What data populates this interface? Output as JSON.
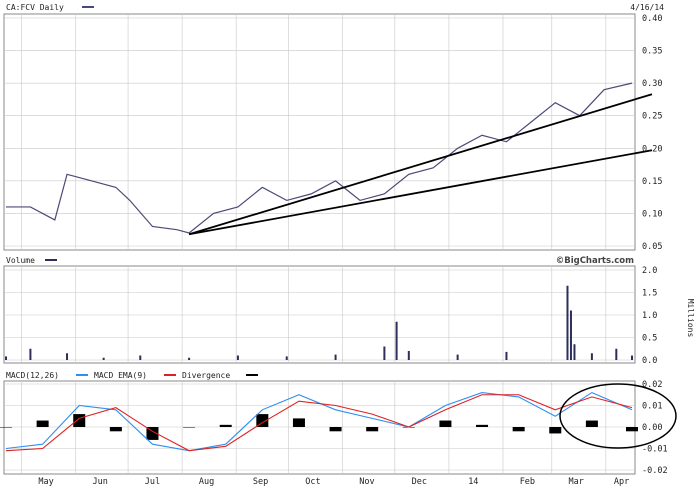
{
  "header": {
    "symbol_label": "CA:FCV Daily",
    "date": "4/16/14"
  },
  "colors": {
    "price": "#4a4a78",
    "volume": "#2e2e5a",
    "macd": "#2f8ff0",
    "ema": "#e02020",
    "divergence": "#000000",
    "trendline": "#000000",
    "grid": "#c8c8c8"
  },
  "chart_data": [
    {
      "type": "line",
      "title": "CA:FCV Daily",
      "ylabel": "",
      "ylim": [
        0.05,
        0.4
      ],
      "yticks": [
        "0.05",
        "0.10",
        "0.15",
        "0.20",
        "0.25",
        "0.30",
        "0.35",
        "0.40"
      ],
      "ytick_values": [
        0.05,
        0.1,
        0.15,
        0.2,
        0.25,
        0.3,
        0.35,
        0.4
      ],
      "x": [
        "2013-04-22",
        "2013-05-06",
        "2013-05-20",
        "2013-05-27",
        "2013-06-10",
        "2013-06-24",
        "2013-07-02",
        "2013-07-15",
        "2013-07-29",
        "2013-08-05",
        "2013-08-19",
        "2013-09-02",
        "2013-09-16",
        "2013-09-30",
        "2013-10-14",
        "2013-10-28",
        "2013-11-11",
        "2013-11-25",
        "2013-12-09",
        "2013-12-23",
        "2014-01-06",
        "2014-01-20",
        "2014-02-03",
        "2014-02-17",
        "2014-03-03",
        "2014-03-17",
        "2014-03-31",
        "2014-04-16"
      ],
      "series": [
        {
          "values": [
            0.11,
            0.11,
            0.09,
            0.16,
            0.15,
            0.14,
            0.12,
            0.08,
            0.075,
            0.07,
            0.1,
            0.11,
            0.14,
            0.12,
            0.13,
            0.15,
            0.12,
            0.13,
            0.16,
            0.17,
            0.2,
            0.22,
            0.21,
            0.24,
            0.27,
            0.25,
            0.29,
            0.3
          ]
        }
      ],
      "trendlines": [
        {
          "from": [
            "2013-08-05",
            0.068
          ],
          "to": [
            "2014-04-16",
            0.283
          ]
        },
        {
          "from": [
            "2013-08-05",
            0.068
          ],
          "to": [
            "2014-04-16",
            0.197
          ]
        }
      ]
    },
    {
      "type": "bar",
      "title": "Volume",
      "ylabel": "Millions",
      "ylim": [
        0,
        2.0
      ],
      "yticks": [
        "0.0",
        "0.5",
        "1.0",
        "1.5",
        "2.0"
      ],
      "ytick_values": [
        0.0,
        0.5,
        1.0,
        1.5,
        2.0
      ],
      "x": [
        "2013-04-22",
        "2013-05-06",
        "2013-05-27",
        "2013-06-17",
        "2013-07-08",
        "2013-08-05",
        "2013-09-02",
        "2013-09-30",
        "2013-10-28",
        "2013-11-25",
        "2013-12-02",
        "2013-12-09",
        "2014-01-06",
        "2014-02-03",
        "2014-03-10",
        "2014-03-12",
        "2014-03-14",
        "2014-03-24",
        "2014-04-07",
        "2014-04-16"
      ],
      "values": [
        0.08,
        0.25,
        0.15,
        0.05,
        0.1,
        0.05,
        0.1,
        0.08,
        0.12,
        0.3,
        0.85,
        0.2,
        0.12,
        0.18,
        1.65,
        1.1,
        0.35,
        0.15,
        0.25,
        0.1
      ],
      "brand": "©BigCharts.com"
    },
    {
      "type": "line",
      "title": "MACD",
      "legend": [
        "MACD(12,26)",
        "MACD EMA(9)",
        "Divergence"
      ],
      "ylim": [
        -0.02,
        0.02
      ],
      "yticks": [
        "-0.02",
        "-0.01",
        "0.00",
        "0.01",
        "0.02"
      ],
      "ytick_values": [
        -0.02,
        -0.01,
        0.0,
        0.01,
        0.02
      ],
      "x": [
        "2013-04-22",
        "2013-05-13",
        "2013-06-03",
        "2013-06-24",
        "2013-07-15",
        "2013-08-05",
        "2013-08-26",
        "2013-09-16",
        "2013-10-07",
        "2013-10-28",
        "2013-11-18",
        "2013-12-09",
        "2013-12-30",
        "2014-01-20",
        "2014-02-10",
        "2014-03-03",
        "2014-03-24",
        "2014-04-16"
      ],
      "series": [
        {
          "name": "MACD(12,26)",
          "values": [
            -0.01,
            -0.008,
            0.01,
            0.008,
            -0.008,
            -0.011,
            -0.008,
            0.008,
            0.015,
            0.008,
            0.004,
            0.0,
            0.01,
            0.016,
            0.014,
            0.005,
            0.016,
            0.008
          ]
        },
        {
          "name": "MACD EMA(9)",
          "values": [
            -0.011,
            -0.01,
            0.004,
            0.009,
            -0.002,
            -0.011,
            -0.009,
            0.002,
            0.012,
            0.01,
            0.006,
            0.0,
            0.008,
            0.015,
            0.015,
            0.008,
            0.014,
            0.009
          ]
        },
        {
          "name": "Divergence",
          "values": [
            0.0,
            0.003,
            0.006,
            -0.002,
            -0.006,
            0.0,
            0.001,
            0.006,
            0.004,
            -0.002,
            -0.002,
            0.0,
            0.003,
            0.001,
            -0.002,
            -0.003,
            0.003,
            -0.002
          ]
        }
      ]
    }
  ],
  "x_axis_labels": [
    "May",
    "Jun",
    "Jul",
    "Aug",
    "Sep",
    "Oct",
    "Nov",
    "Dec",
    "14",
    "Feb",
    "Mar",
    "Apr"
  ]
}
